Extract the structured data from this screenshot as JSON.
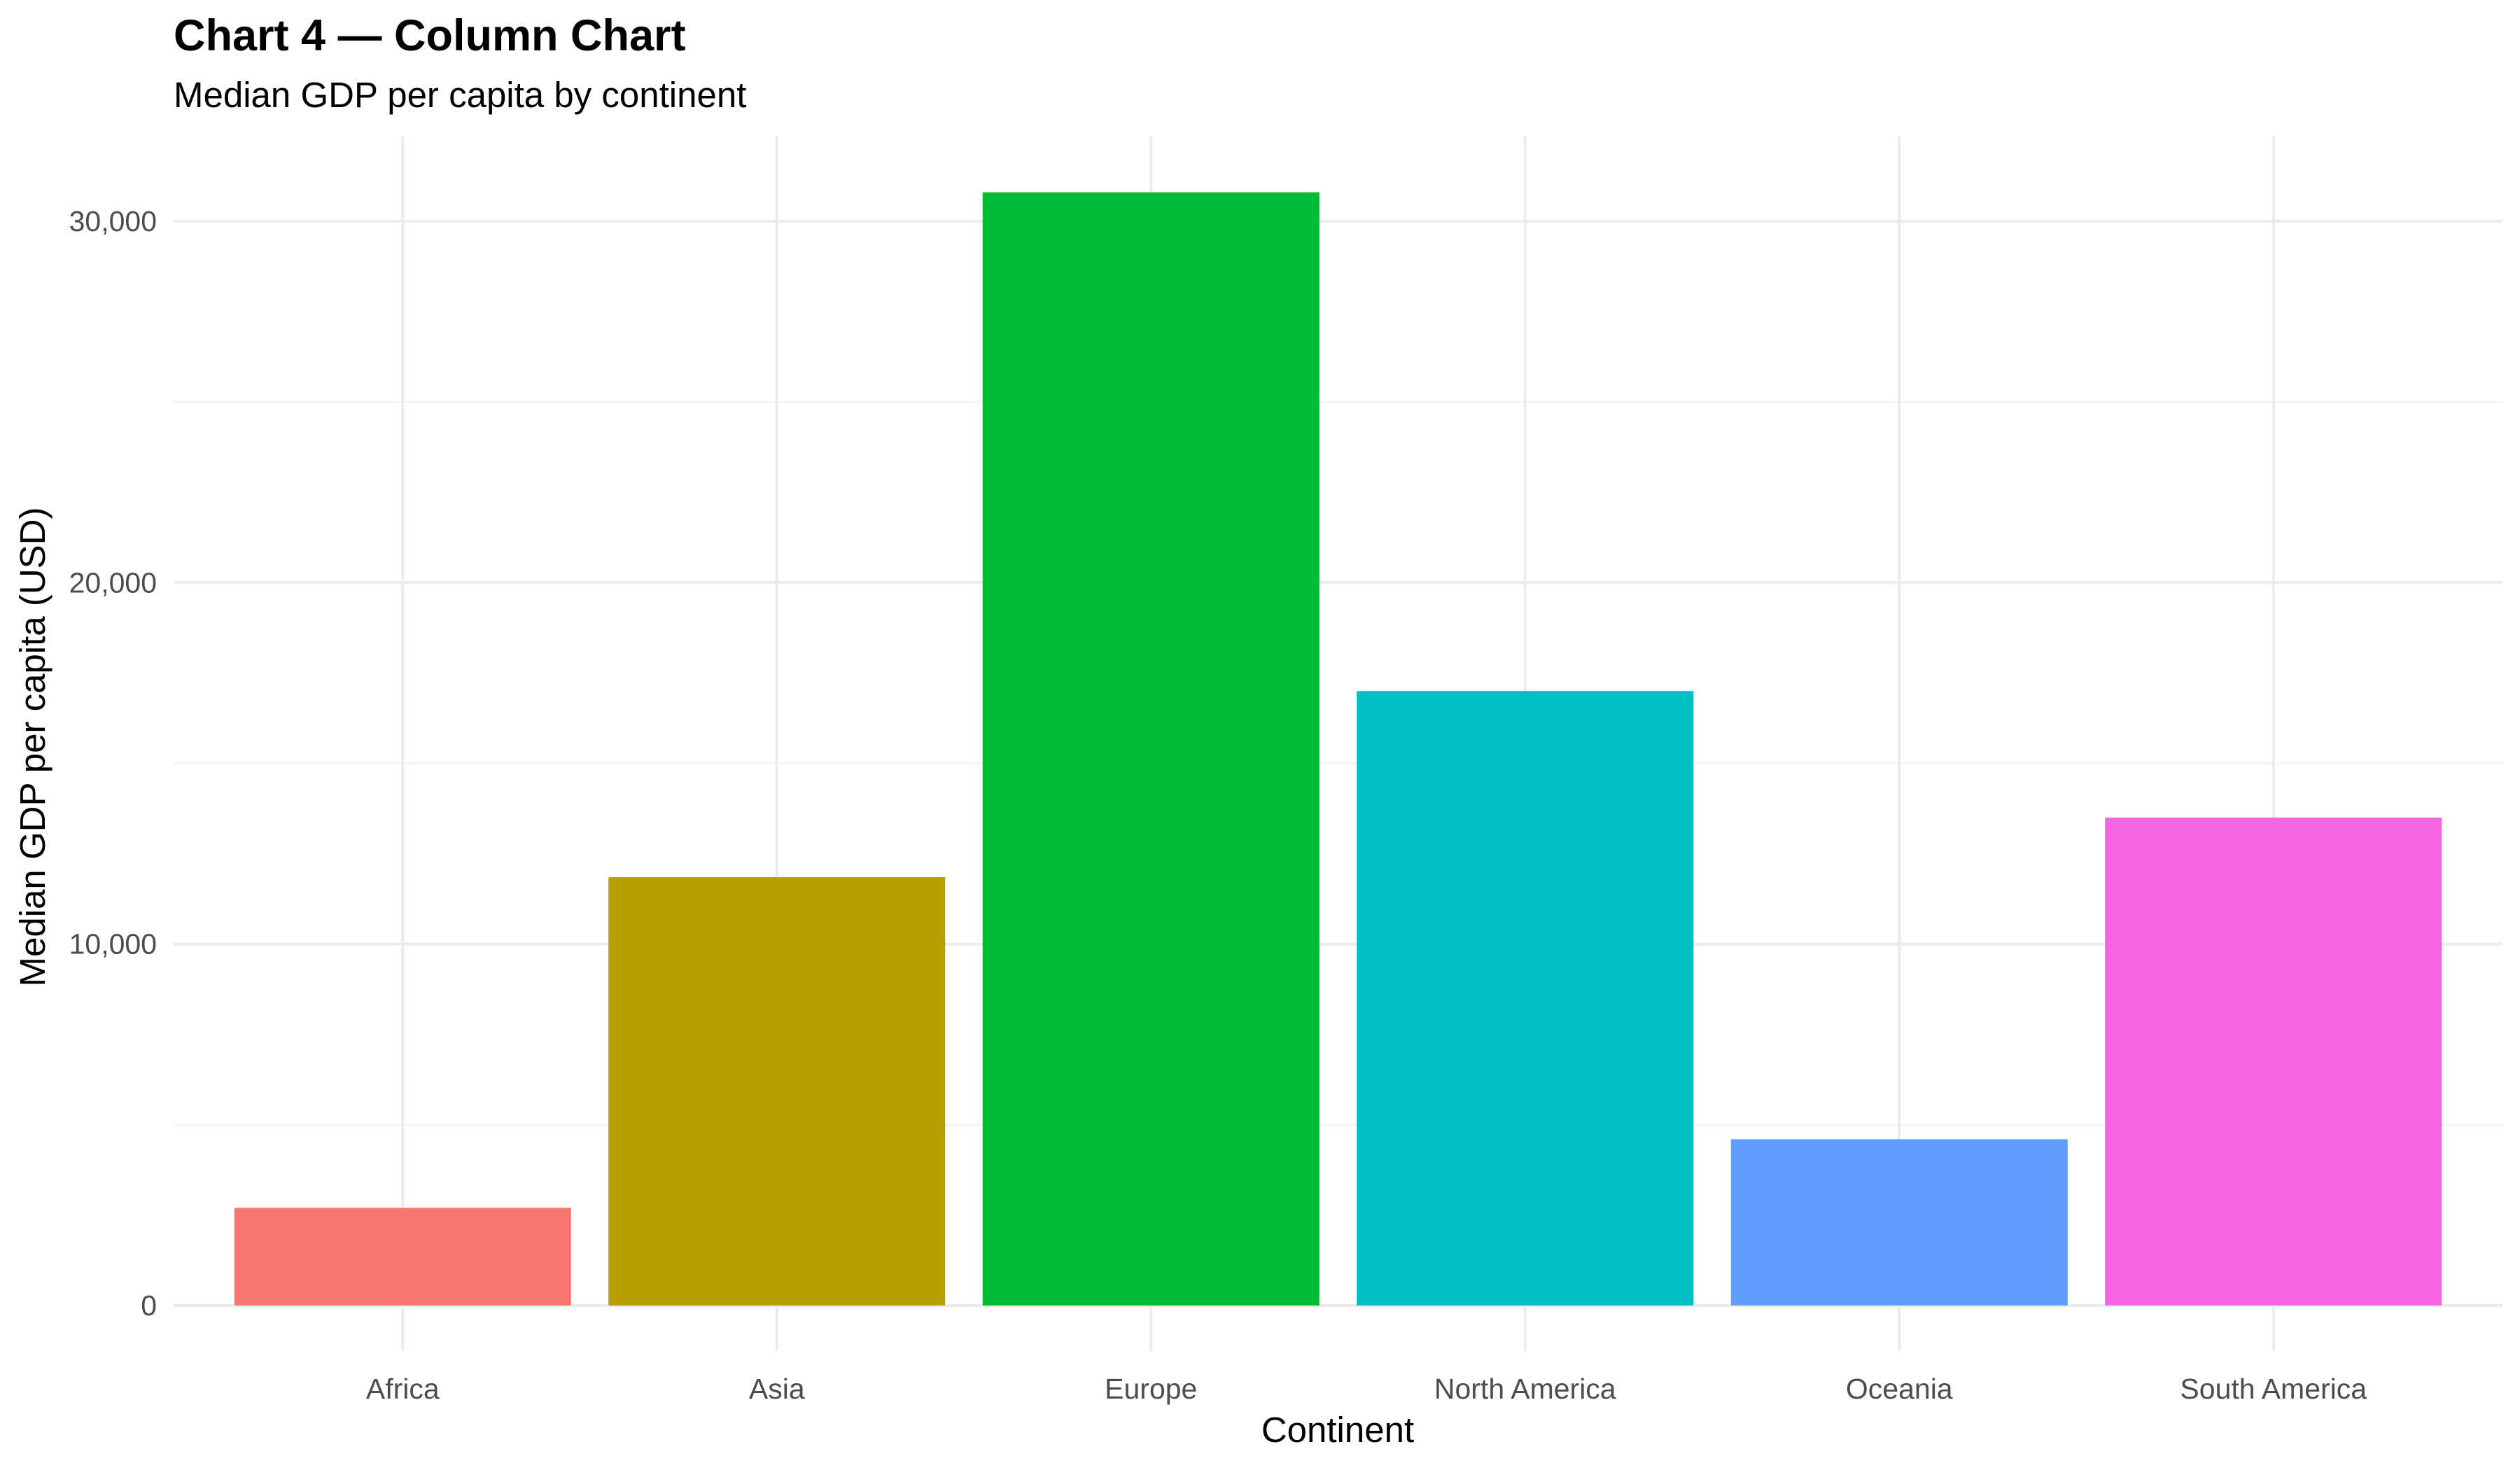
{
  "chart_data": {
    "type": "bar",
    "title": "Chart 4 — Column Chart",
    "subtitle": "Median GDP per capita by continent",
    "xlabel": "Continent",
    "ylabel": "Median GDP per capita (USD)",
    "categories": [
      "Africa",
      "Asia",
      "Europe",
      "North America",
      "Oceania",
      "South America"
    ],
    "values": [
      2700,
      11850,
      30800,
      17000,
      4600,
      13500
    ],
    "colors": [
      "#F8766D",
      "#B79F00",
      "#00BA38",
      "#00BFC4",
      "#619CFF",
      "#F564E3"
    ],
    "ylim": [
      0,
      32000
    ],
    "yticks": [
      0,
      10000,
      20000,
      30000
    ],
    "ytick_labels": [
      "0",
      "10,000",
      "20,000",
      "30,000"
    ],
    "grid": true,
    "legend": "none"
  }
}
